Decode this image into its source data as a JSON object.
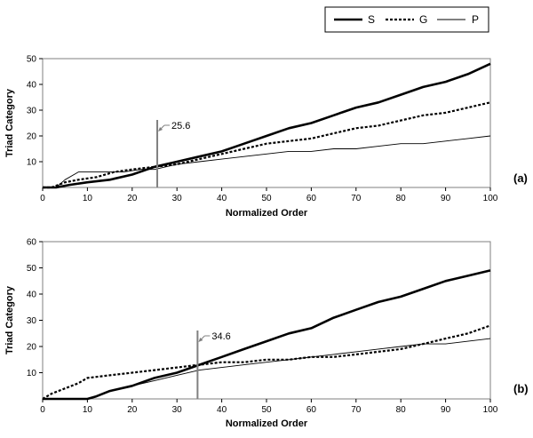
{
  "legend": [
    {
      "label": "S",
      "style": "thick-solid"
    },
    {
      "label": "G",
      "style": "dotted"
    },
    {
      "label": "P",
      "style": "thin-solid"
    }
  ],
  "chart_data": [
    {
      "type": "line",
      "panel_label": "(a)",
      "xlabel": "Normalized Order",
      "ylabel": "Triad Category",
      "xlim": [
        0,
        100
      ],
      "ylim": [
        0,
        50
      ],
      "xticks": [
        0,
        10,
        20,
        30,
        40,
        50,
        60,
        70,
        80,
        90,
        100
      ],
      "yticks": [
        10,
        20,
        30,
        40,
        50
      ],
      "grid": false,
      "annotation": {
        "x": 25.6,
        "label": "25.6"
      },
      "series": [
        {
          "name": "S",
          "style": "thick-solid",
          "points": [
            [
              0,
              0
            ],
            [
              3,
              0
            ],
            [
              6,
              1
            ],
            [
              10,
              2
            ],
            [
              15,
              3
            ],
            [
              20,
              5
            ],
            [
              25,
              8
            ],
            [
              30,
              10
            ],
            [
              35,
              12
            ],
            [
              40,
              14
            ],
            [
              45,
              17
            ],
            [
              50,
              20
            ],
            [
              55,
              23
            ],
            [
              60,
              25
            ],
            [
              65,
              28
            ],
            [
              70,
              31
            ],
            [
              75,
              33
            ],
            [
              80,
              36
            ],
            [
              85,
              39
            ],
            [
              90,
              41
            ],
            [
              95,
              44
            ],
            [
              100,
              48
            ]
          ]
        },
        {
          "name": "G",
          "style": "dotted",
          "points": [
            [
              0,
              0
            ],
            [
              2,
              0
            ],
            [
              5,
              2
            ],
            [
              8,
              3
            ],
            [
              12,
              4
            ],
            [
              16,
              6
            ],
            [
              20,
              7
            ],
            [
              25,
              8
            ],
            [
              30,
              9
            ],
            [
              35,
              11
            ],
            [
              40,
              13
            ],
            [
              45,
              15
            ],
            [
              50,
              17
            ],
            [
              55,
              18
            ],
            [
              60,
              19
            ],
            [
              65,
              21
            ],
            [
              70,
              23
            ],
            [
              75,
              24
            ],
            [
              80,
              26
            ],
            [
              85,
              28
            ],
            [
              90,
              29
            ],
            [
              95,
              31
            ],
            [
              100,
              33
            ]
          ]
        },
        {
          "name": "P",
          "style": "thin-solid",
          "points": [
            [
              0,
              0
            ],
            [
              3,
              0
            ],
            [
              5,
              3
            ],
            [
              8,
              6
            ],
            [
              12,
              6
            ],
            [
              18,
              6
            ],
            [
              22,
              7
            ],
            [
              25,
              7
            ],
            [
              30,
              9
            ],
            [
              35,
              10
            ],
            [
              40,
              11
            ],
            [
              45,
              12
            ],
            [
              50,
              13
            ],
            [
              55,
              14
            ],
            [
              60,
              14
            ],
            [
              65,
              15
            ],
            [
              70,
              15
            ],
            [
              75,
              16
            ],
            [
              80,
              17
            ],
            [
              85,
              17
            ],
            [
              90,
              18
            ],
            [
              95,
              19
            ],
            [
              100,
              20
            ]
          ]
        }
      ]
    },
    {
      "type": "line",
      "panel_label": "(b)",
      "xlabel": "Normalized Order",
      "ylabel": "Triad Category",
      "xlim": [
        0,
        100
      ],
      "ylim": [
        0,
        60
      ],
      "xticks": [
        0,
        10,
        20,
        30,
        40,
        50,
        60,
        70,
        80,
        90,
        100
      ],
      "yticks": [
        10,
        20,
        30,
        40,
        50,
        60
      ],
      "grid": false,
      "annotation": {
        "x": 34.6,
        "label": "34.6"
      },
      "series": [
        {
          "name": "S",
          "style": "thick-solid",
          "points": [
            [
              0,
              0
            ],
            [
              8,
              0
            ],
            [
              10,
              0
            ],
            [
              12,
              1
            ],
            [
              15,
              3
            ],
            [
              20,
              5
            ],
            [
              25,
              8
            ],
            [
              30,
              10
            ],
            [
              35,
              13
            ],
            [
              40,
              16
            ],
            [
              45,
              19
            ],
            [
              50,
              22
            ],
            [
              55,
              25
            ],
            [
              60,
              27
            ],
            [
              65,
              31
            ],
            [
              70,
              34
            ],
            [
              75,
              37
            ],
            [
              80,
              39
            ],
            [
              85,
              42
            ],
            [
              90,
              45
            ],
            [
              95,
              47
            ],
            [
              100,
              49
            ]
          ]
        },
        {
          "name": "G",
          "style": "dotted",
          "points": [
            [
              0,
              0
            ],
            [
              2,
              2
            ],
            [
              5,
              4
            ],
            [
              8,
              6
            ],
            [
              10,
              8
            ],
            [
              15,
              9
            ],
            [
              20,
              10
            ],
            [
              25,
              11
            ],
            [
              30,
              12
            ],
            [
              35,
              13
            ],
            [
              40,
              14
            ],
            [
              45,
              14
            ],
            [
              50,
              15
            ],
            [
              55,
              15
            ],
            [
              60,
              16
            ],
            [
              65,
              16
            ],
            [
              70,
              17
            ],
            [
              75,
              18
            ],
            [
              80,
              19
            ],
            [
              85,
              21
            ],
            [
              90,
              23
            ],
            [
              95,
              25
            ],
            [
              100,
              28
            ]
          ]
        },
        {
          "name": "P",
          "style": "thin-solid",
          "points": [
            [
              0,
              0
            ],
            [
              10,
              0
            ],
            [
              12,
              1
            ],
            [
              15,
              3
            ],
            [
              20,
              5
            ],
            [
              25,
              7
            ],
            [
              30,
              9
            ],
            [
              35,
              11
            ],
            [
              40,
              12
            ],
            [
              45,
              13
            ],
            [
              50,
              14
            ],
            [
              55,
              15
            ],
            [
              60,
              16
            ],
            [
              65,
              17
            ],
            [
              70,
              18
            ],
            [
              75,
              19
            ],
            [
              80,
              20
            ],
            [
              85,
              21
            ],
            [
              90,
              21
            ],
            [
              95,
              22
            ],
            [
              100,
              23
            ]
          ]
        }
      ]
    }
  ]
}
